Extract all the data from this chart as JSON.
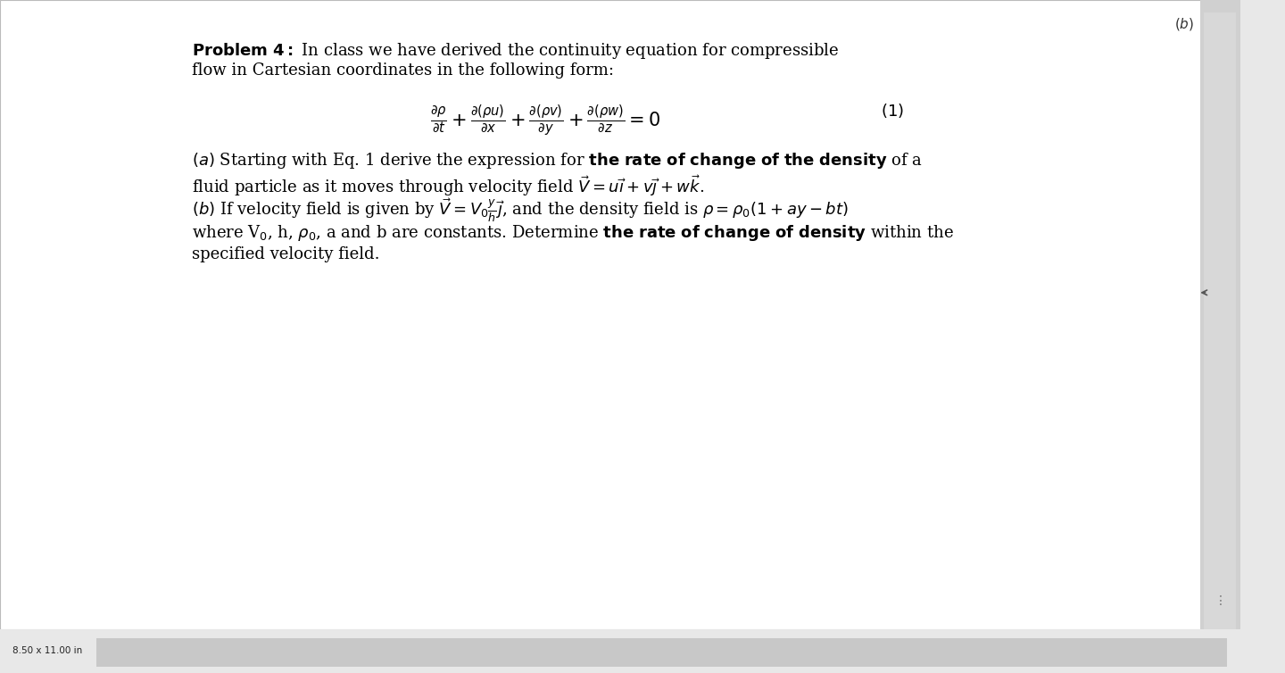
{
  "background_color": "#e8e8e8",
  "page_background": "#ffffff",
  "text_color": "#000000",
  "figsize": [
    14.4,
    7.54
  ],
  "dpi": 100,
  "bottom_label": "8.50 x 11.00 in",
  "bottom_bar_color": "#c8c8c8",
  "border_color": "#bbbbbb",
  "scrollbar_color": "#d0d0d0"
}
